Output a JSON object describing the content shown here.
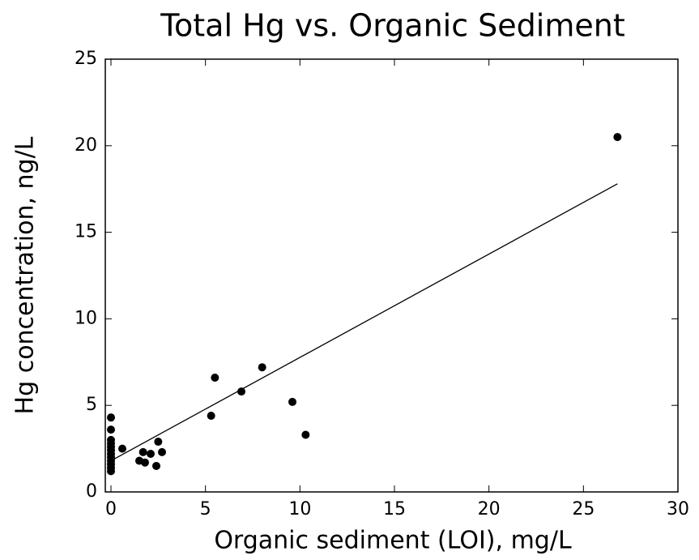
{
  "chart_data": {
    "type": "scatter",
    "title": "Total Hg vs. Organic Sediment",
    "x_label": "Organic sediment (LOI), mg/L",
    "y_label": "Hg concentration, ng/L",
    "x": [
      0,
      0,
      0,
      0,
      0,
      0,
      0,
      0,
      0,
      0,
      0,
      0,
      0.6,
      1.5,
      1.7,
      1.8,
      2.1,
      2.4,
      2.5,
      2.7,
      5.3,
      5.5,
      6.9,
      8.0,
      9.6,
      10.3,
      26.8
    ],
    "values": [
      4.3,
      3.6,
      3.0,
      2.8,
      2.6,
      2.4,
      2.2,
      2.0,
      1.8,
      1.6,
      1.4,
      1.2,
      2.5,
      1.8,
      2.3,
      1.7,
      2.2,
      1.5,
      2.9,
      2.3,
      4.4,
      6.6,
      5.8,
      7.2,
      5.2,
      3.3,
      20.5
    ],
    "color": "#000000",
    "fit": {
      "x": [
        0,
        26.8
      ],
      "y": [
        1.8,
        17.8
      ]
    },
    "xlim": [
      -0.3,
      30
    ],
    "xticks": [
      0,
      5,
      10,
      15,
      20,
      25,
      30
    ],
    "ylim": [
      0,
      25
    ],
    "yticks": [
      0,
      5,
      10,
      15,
      20,
      25
    ]
  }
}
